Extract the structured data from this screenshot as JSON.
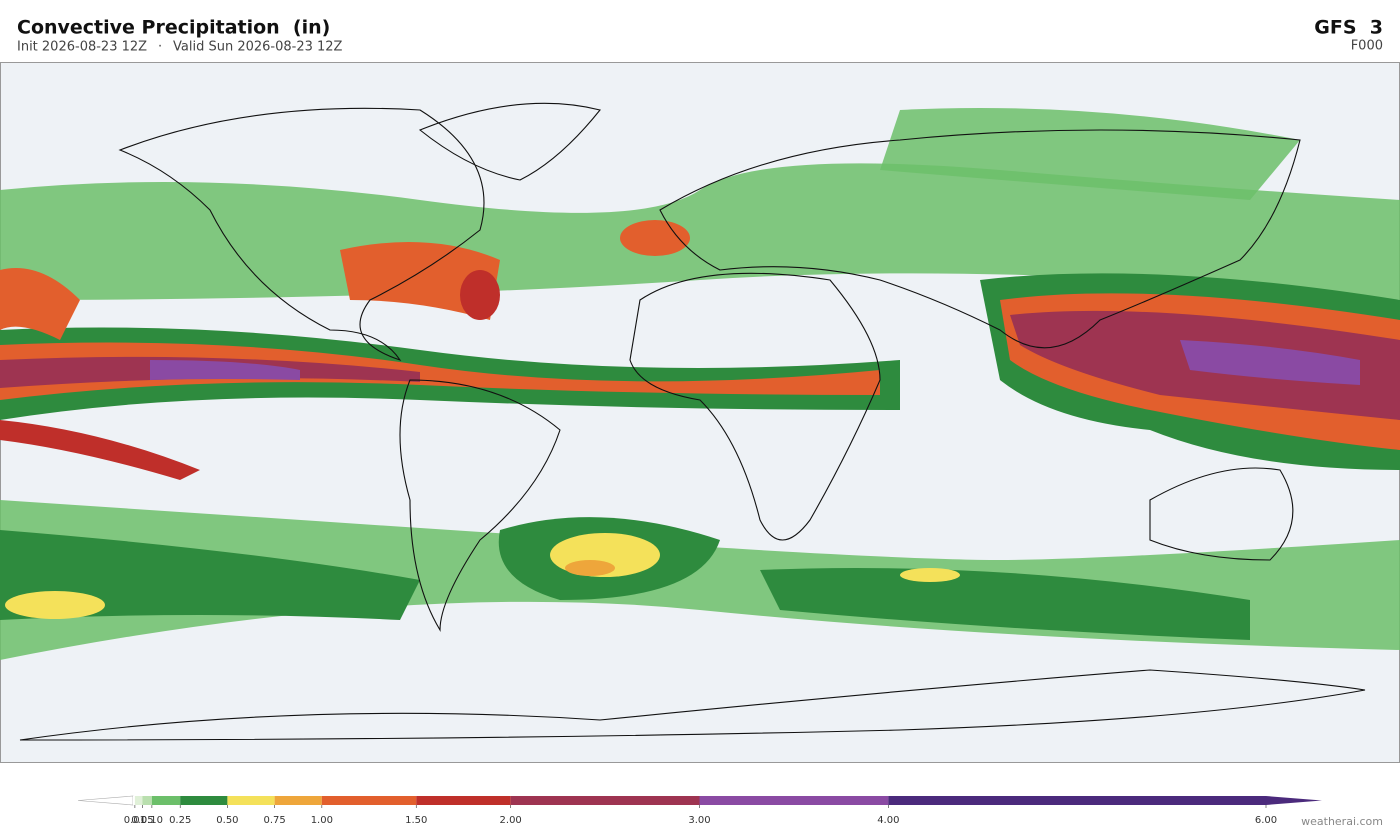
{
  "header": {
    "title": "Convective Precipitation  (in)",
    "init": "Init 2026-08-23 12Z",
    "separator": "·",
    "valid": "Valid Sun 2026-08-23 12Z",
    "model": "GFS  3",
    "forecast_hour": "F000"
  },
  "colorbar": {
    "range": [
      0,
      6
    ],
    "bounds": [
      0,
      0.01,
      0.05,
      0.1,
      0.25,
      0.5,
      0.75,
      1,
      1.5,
      2,
      3,
      4,
      6
    ],
    "colors": [
      "#ffffff",
      "#e0f0d8",
      "#b9dfae",
      "#6cbf6a",
      "#2e8b3e",
      "#f4e15a",
      "#eea63b",
      "#e25f2d",
      "#bf2f2a",
      "#9e3451",
      "#8a4aa3",
      "#4b2a7c"
    ],
    "under_color": "#ffffff",
    "over_color": "#4b2a7c",
    "ticks": [
      {
        "value": 0.01,
        "label": "0.01"
      },
      {
        "value": 0.05,
        "label": "0.05"
      },
      {
        "value": 0.1,
        "label": "0.10"
      },
      {
        "value": 0.25,
        "label": "0.25"
      },
      {
        "value": 0.5,
        "label": "0.50"
      },
      {
        "value": 0.75,
        "label": "0.75"
      },
      {
        "value": 1,
        "label": "1.00"
      },
      {
        "value": 1.5,
        "label": "1.50"
      },
      {
        "value": 2,
        "label": "2.00"
      },
      {
        "value": 3,
        "label": "3.00"
      },
      {
        "value": 4,
        "label": "4.00"
      },
      {
        "value": 6,
        "label": "6.00"
      }
    ]
  },
  "watermark": "weatherai.com"
}
